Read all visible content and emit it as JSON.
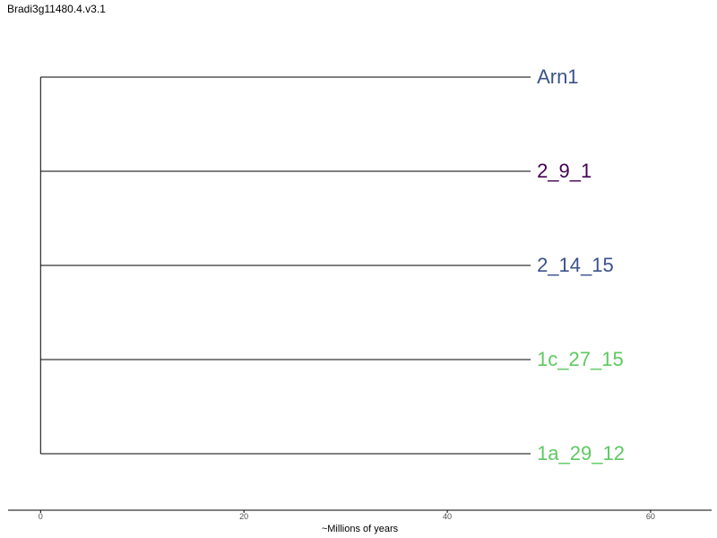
{
  "title": "Bradi3g11480.4.v3.1",
  "chart_data": {
    "type": "tree",
    "xlabel": "~Millions of years",
    "xlim": [
      -3.2,
      66
    ],
    "xticks": [
      0,
      20,
      40,
      60
    ],
    "tick_labels": [
      "0",
      "20",
      "40",
      "60"
    ],
    "root_x": 0,
    "tips": [
      {
        "label": "Arn1",
        "x": 48.2,
        "color": "#3b528b"
      },
      {
        "label": "2_9_1",
        "x": 48.2,
        "color": "#440154"
      },
      {
        "label": "2_14_15",
        "x": 48.2,
        "color": "#3b528b"
      },
      {
        "label": "1c_27_15",
        "x": 48.2,
        "color": "#5ec962"
      },
      {
        "label": "1a_29_12",
        "x": 48.2,
        "color": "#5ec962"
      }
    ]
  }
}
